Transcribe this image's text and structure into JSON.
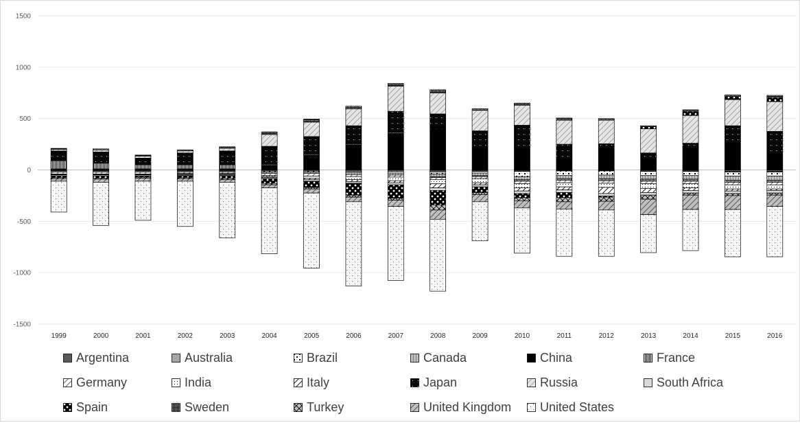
{
  "chart_data": {
    "type": "bar",
    "stacked": true,
    "diverging": true,
    "title": "",
    "xlabel": "",
    "ylabel": "",
    "ylim": [
      -1500,
      1500
    ],
    "yticks": [
      "1500",
      "1000",
      "500",
      "0",
      "-500",
      "-1000",
      "-1500"
    ],
    "categories": [
      "1999",
      "2000",
      "2001",
      "2002",
      "2003",
      "2004",
      "2005",
      "2006",
      "2007",
      "2008",
      "2009",
      "2010",
      "2011",
      "2012",
      "2013",
      "2014",
      "2015",
      "2016"
    ],
    "grid": "horizontal",
    "legend_position": "bottom",
    "series": [
      {
        "name": "Argentina",
        "values": [
          -5,
          -5,
          -5,
          -5,
          -5,
          -10,
          -10,
          -15,
          -15,
          -10,
          -10,
          -10,
          -5,
          -5,
          -10,
          -10,
          -15,
          -15
        ]
      },
      {
        "name": "Australia",
        "values": [
          5,
          5,
          5,
          5,
          5,
          5,
          5,
          5,
          5,
          -10,
          -5,
          -5,
          -5,
          -5,
          -5,
          -5,
          -5,
          -5
        ]
      },
      {
        "name": "Brazil",
        "values": [
          -5,
          -5,
          -5,
          -5,
          -5,
          -10,
          -10,
          -10,
          -15,
          -20,
          -15,
          -50,
          -45,
          -40,
          -40,
          -40,
          -40,
          -40
        ]
      },
      {
        "name": "Canada",
        "values": [
          -10,
          -10,
          -10,
          -10,
          -10,
          -15,
          -15,
          -20,
          -20,
          -25,
          -25,
          -30,
          -30,
          -35,
          -35,
          -35,
          -40,
          -40
        ]
      },
      {
        "name": "China",
        "values": [
          5,
          5,
          5,
          5,
          5,
          40,
          140,
          240,
          350,
          400,
          230,
          220,
          120,
          195,
          125,
          220,
          280,
          175
        ]
      },
      {
        "name": "France",
        "values": [
          80,
          55,
          40,
          40,
          40,
          10,
          10,
          10,
          10,
          -10,
          -10,
          -15,
          -15,
          -20,
          -20,
          -20,
          -20,
          -20
        ]
      },
      {
        "name": "Germany",
        "values": [
          -20,
          -20,
          -20,
          -15,
          -15,
          -20,
          -25,
          -20,
          -20,
          -20,
          -20,
          -25,
          -25,
          -25,
          -25,
          -25,
          -25,
          -25
        ]
      },
      {
        "name": "India",
        "values": [
          -5,
          -5,
          -5,
          -5,
          -5,
          -10,
          -20,
          -30,
          -35,
          -40,
          -40,
          -40,
          -40,
          -40,
          -45,
          -40,
          -40,
          -40
        ]
      },
      {
        "name": "Italy",
        "values": [
          -5,
          -5,
          -5,
          -5,
          -5,
          -10,
          -15,
          -20,
          -20,
          -40,
          -20,
          -30,
          -30,
          -60,
          -40,
          -25,
          -20,
          -15
        ]
      },
      {
        "name": "Japan",
        "values": [
          95,
          110,
          65,
          115,
          135,
          175,
          170,
          175,
          205,
          145,
          150,
          215,
          130,
          60,
          40,
          40,
          150,
          200
        ]
      },
      {
        "name": "Russia",
        "values": [
          15,
          20,
          20,
          20,
          25,
          115,
          140,
          165,
          245,
          205,
          200,
          195,
          235,
          230,
          235,
          270,
          255,
          290
        ]
      },
      {
        "name": "South Africa",
        "values": [
          -10,
          -10,
          -10,
          -10,
          -10,
          -10,
          -15,
          -15,
          -20,
          -25,
          -20,
          -25,
          -25,
          -25,
          -25,
          -25,
          -25,
          -25
        ]
      },
      {
        "name": "Spain",
        "values": [
          -15,
          -20,
          -10,
          -20,
          -25,
          -45,
          -60,
          -115,
          -130,
          -140,
          -55,
          -40,
          -50,
          -10,
          20,
          40,
          30,
          40
        ]
      },
      {
        "name": "Sweden",
        "values": [
          10,
          10,
          10,
          10,
          15,
          25,
          30,
          25,
          25,
          30,
          15,
          20,
          20,
          15,
          10,
          15,
          15,
          20
        ]
      },
      {
        "name": "Turkey",
        "values": [
          -10,
          -10,
          -10,
          -10,
          -15,
          -15,
          -15,
          -20,
          -20,
          -50,
          -20,
          -30,
          -40,
          -40,
          -40,
          -20,
          -20,
          -20
        ]
      },
      {
        "name": "United Kingdom",
        "values": [
          -25,
          -30,
          -30,
          -25,
          -25,
          -30,
          -40,
          -45,
          -60,
          -90,
          -70,
          -70,
          -70,
          -85,
          -150,
          -140,
          -135,
          -110
        ]
      },
      {
        "name": "United States",
        "values": [
          -300,
          -420,
          -380,
          -440,
          -540,
          -640,
          -730,
          -820,
          -720,
          -700,
          -380,
          -440,
          -460,
          -450,
          -370,
          -400,
          -460,
          -490
        ]
      }
    ]
  },
  "style": {
    "ink": "#000000",
    "axis_color": "#d9d9d9",
    "grid_color": "#e6e6e6",
    "text_color": "#404040"
  },
  "patterns": {
    "Argentina": "solid-dark-grey",
    "Australia": "solid-mid-grey",
    "Brazil": "checker-dots",
    "Canada": "vertical-lines-grey",
    "China": "solid-black",
    "France": "dense-vertical-lines",
    "Germany": "diagonal-lines-light",
    "India": "dotted-grid",
    "Italy": "diagonal-hatch",
    "Japan": "black-with-dots",
    "Russia": "light-diagonal-grey",
    "South Africa": "solid-light-grey",
    "Spain": "black-grid-white-dots",
    "Sweden": "fine-crosshatch",
    "Turkey": "cross-diagonal",
    "United Kingdom": "grey-diagonal",
    "United States": "sparse-dots"
  }
}
